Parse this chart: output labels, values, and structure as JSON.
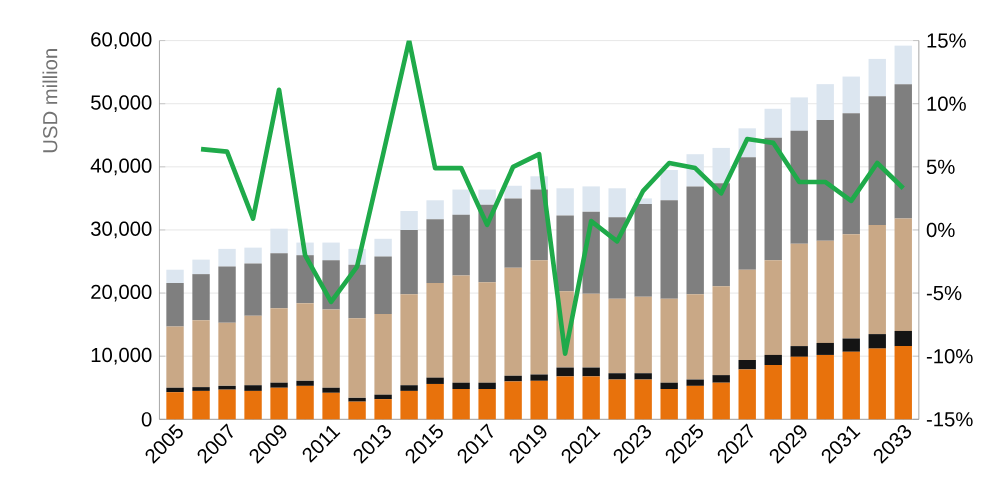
{
  "chart_data": {
    "type": "bar",
    "stacked": true,
    "ylabel": "USD million",
    "grid": "y",
    "categories": [
      "2005",
      null,
      "2007",
      null,
      "2009",
      null,
      "2011",
      null,
      "2013",
      null,
      "2015",
      null,
      "2017",
      null,
      "2019",
      null,
      "2021",
      null,
      "2023",
      null,
      "2025",
      null,
      "2027",
      null,
      "2029",
      null,
      "2031",
      null,
      "2033"
    ],
    "ylim": [
      0,
      60000
    ],
    "yticks": [
      {
        "value": 0,
        "label": "0"
      },
      {
        "value": 10000,
        "label": "10,000"
      },
      {
        "value": 20000,
        "label": "20,000"
      },
      {
        "value": 30000,
        "label": "30,000"
      },
      {
        "value": 40000,
        "label": "40,000"
      },
      {
        "value": 50000,
        "label": "50,000"
      },
      {
        "value": 60000,
        "label": "60,000"
      }
    ],
    "y2lim": [
      -15,
      15
    ],
    "y2ticks": [
      {
        "value": -15,
        "label": "-15%"
      },
      {
        "value": -10,
        "label": "-10%"
      },
      {
        "value": -5,
        "label": "-5%"
      },
      {
        "value": 0,
        "label": "0%"
      },
      {
        "value": 5,
        "label": "5%"
      },
      {
        "value": 10,
        "label": "10%"
      },
      {
        "value": 15,
        "label": "15%"
      }
    ],
    "series": [
      {
        "color": "#e8720c",
        "values": [
          4300,
          4500,
          4700,
          4500,
          5000,
          5300,
          4200,
          2800,
          3200,
          4500,
          5600,
          4800,
          4800,
          6000,
          6100,
          6800,
          6800,
          6300,
          6300,
          4800,
          5300,
          5800,
          7900,
          8600,
          9900,
          10200,
          10700,
          11200,
          11600
        ]
      },
      {
        "color": "#141414",
        "values": [
          700,
          600,
          600,
          900,
          800,
          800,
          800,
          600,
          700,
          900,
          1000,
          1000,
          1000,
          900,
          1000,
          1400,
          1400,
          1000,
          1000,
          1000,
          1000,
          1200,
          1500,
          1600,
          1700,
          1900,
          2100,
          2300,
          2400
        ]
      },
      {
        "color": "#c9a886",
        "values": [
          9700,
          10600,
          10000,
          11000,
          11800,
          12300,
          12400,
          12600,
          12800,
          14400,
          15000,
          17000,
          15900,
          17100,
          18100,
          12100,
          11700,
          11800,
          12100,
          13300,
          13500,
          14100,
          14300,
          15000,
          16200,
          16200,
          16500,
          17300,
          17800
        ]
      },
      {
        "color": "#7f7f7f",
        "values": [
          6900,
          7300,
          8900,
          8300,
          8700,
          7600,
          7800,
          8500,
          9100,
          10200,
          10100,
          9600,
          12300,
          11000,
          11200,
          12000,
          13000,
          12900,
          14700,
          15600,
          17100,
          16300,
          17800,
          19400,
          17900,
          19100,
          19200,
          20400,
          21300
        ]
      },
      {
        "color": "#dce6f0",
        "values": [
          2100,
          2300,
          2800,
          2500,
          3900,
          2000,
          2800,
          2500,
          2800,
          3000,
          3000,
          4000,
          2400,
          2000,
          2100,
          4300,
          4000,
          4600,
          900,
          4800,
          5100,
          5600,
          4600,
          4600,
          5300,
          5700,
          5800,
          5900,
          6100
        ]
      },
      {
        "type": "line",
        "axis": "y2",
        "color": "#1faa4a",
        "values": [
          null,
          6.4,
          6.2,
          0.9,
          11.1,
          -2.0,
          -5.7,
          -2.9,
          6.0,
          15.0,
          4.9,
          4.9,
          0.4,
          5.0,
          6.0,
          -9.8,
          0.7,
          -0.9,
          3.1,
          5.3,
          4.9,
          2.9,
          7.2,
          6.9,
          3.8,
          3.8,
          2.3,
          5.3,
          3.3
        ]
      }
    ]
  }
}
